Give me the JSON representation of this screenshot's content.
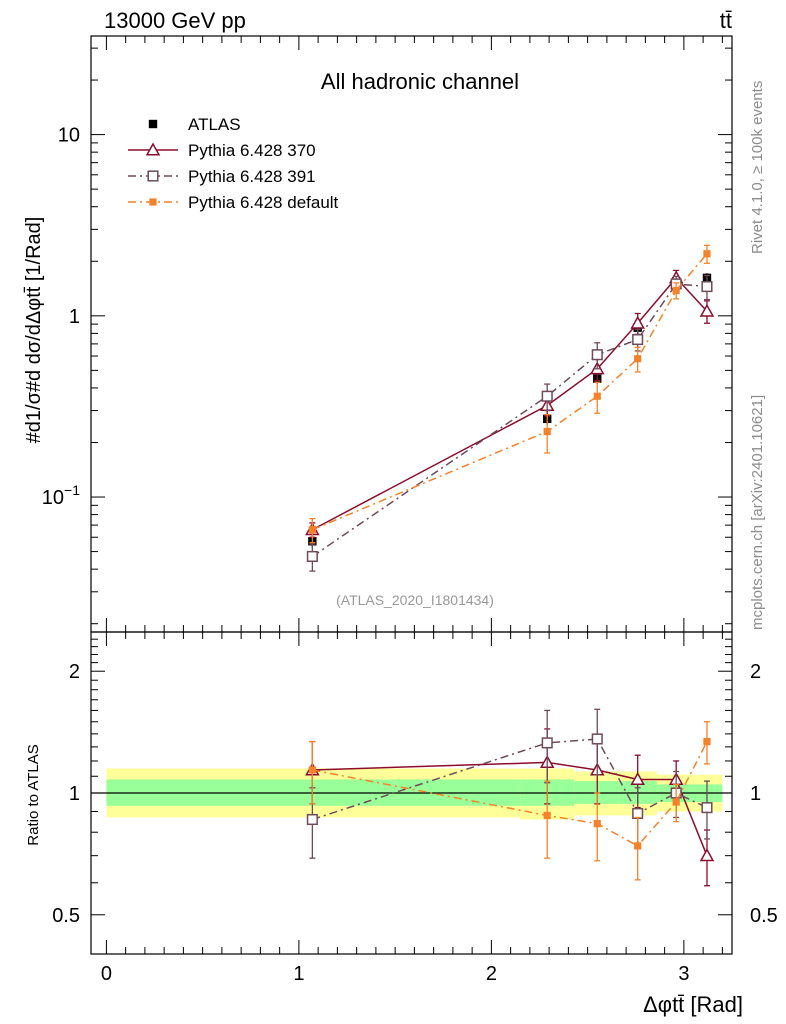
{
  "header": {
    "energy_label": "13000 GeV pp",
    "process_label": "tt̄",
    "rivet_label": "Rivet 4.1.0, ≥ 100k events",
    "source_label": "mcplots.cern.ch [arXiv:2401.10621]"
  },
  "chart_data": [
    {
      "type": "line",
      "panel": "main",
      "title": "All hadronic channel",
      "analysis_label": "(ATLAS_2020_I1801434)",
      "xlabel": "Δφtt̄ [Rad]",
      "ylabel": "#d1/σ#d dσ/dΔφtt̄ [1/Rad]",
      "yscale": "log",
      "xlim": [
        -0.08,
        3.25
      ],
      "ylim": [
        0.018,
        35
      ],
      "yticks": [
        {
          "value": 0.1,
          "label": "10^{-1}"
        },
        {
          "value": 1,
          "label": "1"
        },
        {
          "value": 10,
          "label": "10"
        }
      ],
      "x": [
        1.07,
        2.29,
        2.55,
        2.76,
        2.96,
        3.12
      ],
      "data": {
        "name": "ATLAS",
        "values": [
          0.057,
          0.27,
          0.45,
          0.86,
          1.55,
          1.62
        ],
        "errors": [
          0.005,
          0.02,
          0.03,
          0.06,
          0.1,
          0.1
        ]
      },
      "series": [
        {
          "name": "Pythia 6.428 370",
          "color": "#8b0d2c",
          "marker": "open-triangle",
          "dash": "solid",
          "values": [
            0.066,
            0.32,
            0.51,
            0.91,
            1.62,
            1.06
          ],
          "errors": [
            0.006,
            0.04,
            0.07,
            0.12,
            0.16,
            0.15
          ]
        },
        {
          "name": "Pythia 6.428 391",
          "color": "#6e4a5a",
          "marker": "open-square",
          "dash": "dashdot",
          "values": [
            0.047,
            0.36,
            0.61,
            0.74,
            1.5,
            1.45
          ],
          "errors": [
            0.008,
            0.06,
            0.1,
            0.1,
            0.15,
            0.22
          ]
        },
        {
          "name": "Pythia 6.428 default",
          "color": "#f5822a",
          "marker": "filled-square",
          "dash": "dashdot",
          "values": [
            0.066,
            0.23,
            0.36,
            0.58,
            1.38,
            2.2
          ],
          "errors": [
            0.01,
            0.055,
            0.07,
            0.09,
            0.14,
            0.25
          ]
        }
      ]
    },
    {
      "type": "line",
      "panel": "ratio",
      "ylabel": "Ratio to ATLAS",
      "yscale": "log",
      "ylim": [
        0.4,
        2.5
      ],
      "xticks": [
        0,
        1,
        2,
        3
      ],
      "yticks": [
        {
          "value": 0.5,
          "label": "0.5"
        },
        {
          "value": 1,
          "label": "1"
        },
        {
          "value": 2,
          "label": "2"
        }
      ],
      "bands": {
        "x_edges": [
          0.0,
          2.15,
          2.43,
          2.66,
          2.86,
          3.05,
          3.2
        ],
        "total_low": [
          0.87,
          0.86,
          0.88,
          0.88,
          0.9,
          0.9
        ],
        "total_high": [
          1.15,
          1.15,
          1.13,
          1.13,
          1.11,
          1.11
        ],
        "stat_low": [
          0.93,
          0.93,
          0.94,
          0.94,
          0.95,
          0.95
        ],
        "stat_high": [
          1.08,
          1.08,
          1.07,
          1.07,
          1.05,
          1.05
        ],
        "total_color": "#ffff99",
        "stat_color": "#99ff99"
      },
      "x": [
        1.07,
        2.29,
        2.55,
        2.76,
        2.96,
        3.12
      ],
      "series": [
        {
          "name": "Pythia 6.428 370",
          "color": "#8b0d2c",
          "marker": "open-triangle",
          "dash": "solid",
          "values": [
            1.14,
            1.19,
            1.14,
            1.08,
            1.08,
            0.7
          ],
          "errors": [
            0.2,
            0.25,
            0.2,
            0.16,
            0.12,
            0.11
          ]
        },
        {
          "name": "Pythia 6.428 391",
          "color": "#6e4a5a",
          "marker": "open-square",
          "dash": "dashdot",
          "values": [
            0.86,
            1.33,
            1.36,
            0.89,
            1.0,
            0.92
          ],
          "errors": [
            0.17,
            0.27,
            0.25,
            0.14,
            0.13,
            0.15
          ]
        },
        {
          "name": "Pythia 6.428 default",
          "color": "#f5822a",
          "marker": "filled-square",
          "dash": "dashdot",
          "values": [
            1.14,
            0.88,
            0.84,
            0.74,
            0.95,
            1.34
          ],
          "errors": [
            0.2,
            0.19,
            0.16,
            0.13,
            0.1,
            0.16
          ]
        }
      ]
    }
  ]
}
